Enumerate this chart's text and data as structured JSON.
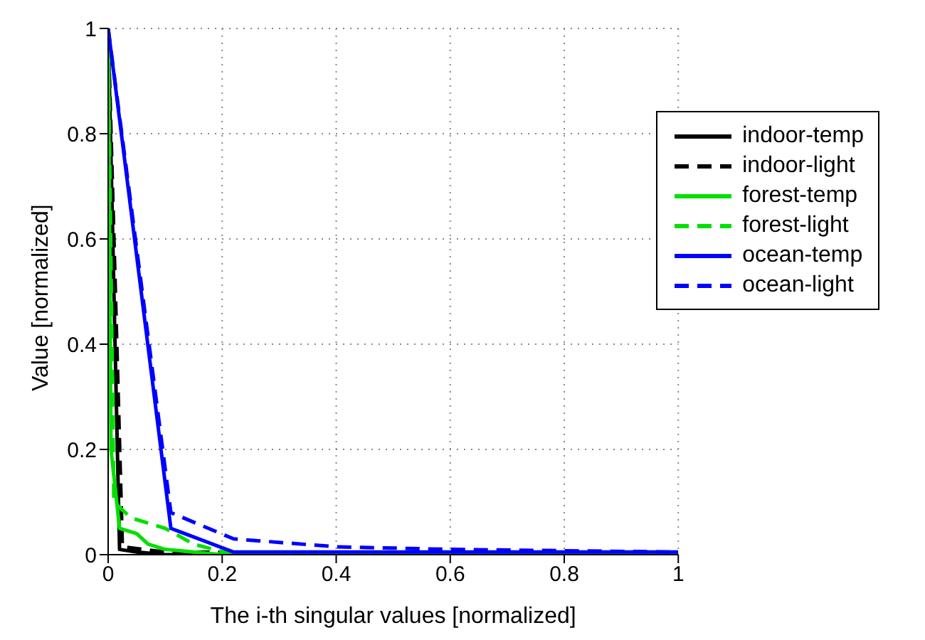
{
  "chart_data": {
    "type": "line",
    "xlabel": "The i-th singular values [normalized]",
    "ylabel": "Value [normalized]",
    "xlim": [
      0,
      1
    ],
    "ylim": [
      0,
      1
    ],
    "xticks": [
      0,
      0.2,
      0.4,
      0.6,
      0.8,
      1
    ],
    "yticks": [
      0,
      0.2,
      0.4,
      0.6,
      0.8,
      1
    ],
    "grid": true,
    "legend": "top right",
    "marker": "none",
    "series": [
      {
        "name": "indoor-temp",
        "color": "#000000",
        "line_style": "solid",
        "x": [
          0,
          0.02,
          0.05,
          0.1,
          1
        ],
        "values": [
          1,
          0.01,
          0.005,
          0,
          0
        ]
      },
      {
        "name": "indoor-light",
        "color": "#000000",
        "line_style": "dashed",
        "x": [
          0,
          0.025,
          0.1,
          1
        ],
        "values": [
          1,
          0.015,
          0.005,
          0
        ]
      },
      {
        "name": "forest-temp",
        "color": "#00e000",
        "line_style": "solid",
        "x": [
          0,
          0.005,
          0.02,
          0.05,
          0.07,
          0.1,
          0.2,
          1
        ],
        "values": [
          1,
          0.2,
          0.05,
          0.04,
          0.02,
          0.01,
          0,
          0
        ]
      },
      {
        "name": "forest-light",
        "color": "#00e000",
        "line_style": "dashed",
        "x": [
          0,
          0.01,
          0.04,
          0.1,
          0.15,
          0.22,
          1
        ],
        "values": [
          1,
          0.1,
          0.07,
          0.05,
          0.02,
          0,
          0
        ]
      },
      {
        "name": "ocean-temp",
        "color": "#0000ff",
        "line_style": "solid",
        "x": [
          0,
          0.11,
          0.22,
          1
        ],
        "values": [
          1,
          0.05,
          0.005,
          0.005
        ]
      },
      {
        "name": "ocean-light",
        "color": "#0000ff",
        "line_style": "dashed",
        "x": [
          0,
          0.11,
          0.22,
          0.4,
          0.6,
          1
        ],
        "values": [
          1,
          0.08,
          0.03,
          0.015,
          0.01,
          0.005
        ]
      }
    ]
  }
}
